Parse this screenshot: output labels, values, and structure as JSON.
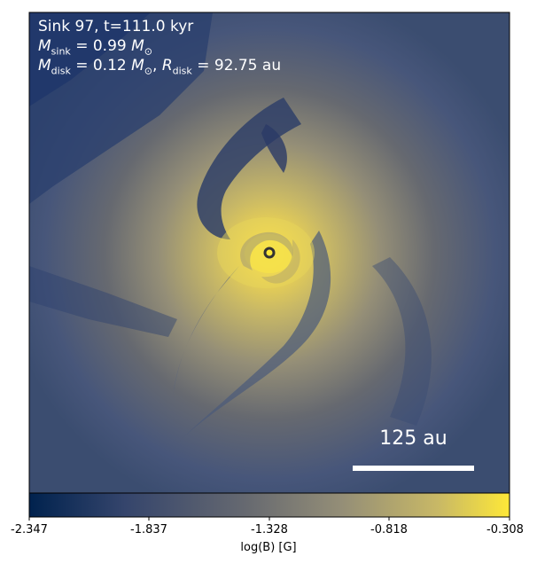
{
  "panel": {
    "sink_line": "Sink 97, t=111.0 kyr",
    "mass_sink": {
      "symbol": "M",
      "subscript": "sink",
      "value": "= 0.99",
      "unit": "M",
      "unit_subscript": "⊙"
    },
    "mass_disk": {
      "symbol": "M",
      "subscript": "disk",
      "value": "= 0.12",
      "unit": "M",
      "unit_subscript": "⊙",
      "sep": ",",
      "r_symbol": "R",
      "r_subscript": "disk",
      "r_value": "= 92.75",
      "r_unit": "au"
    },
    "scale_bar_label": "125 au"
  },
  "colorbar": {
    "label": "log(B) [G]",
    "ticks": [
      "-2.347",
      "-1.837",
      "-1.328",
      "-0.818",
      "-0.308"
    ],
    "colormap": "cividis",
    "colors": [
      "#00224e",
      "#35456c",
      "#666970",
      "#948e77",
      "#c8b866",
      "#fee838"
    ]
  },
  "colors": {
    "background_field": "#3b4d70",
    "disk_core": "#fee838",
    "sink_marker_fill": "#fee838",
    "sink_marker_edge": "#333333",
    "text": "#ffffff"
  }
}
